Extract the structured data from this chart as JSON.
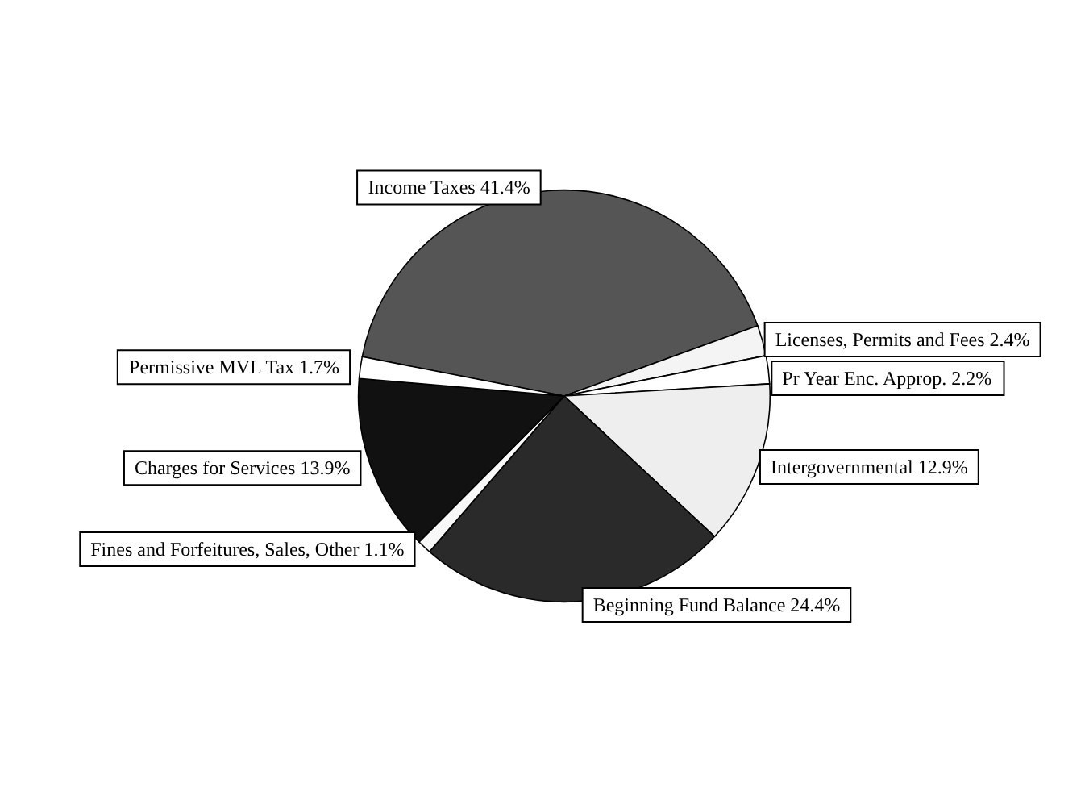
{
  "chart_data": {
    "type": "pie",
    "categories": [
      "Income Taxes",
      "Licenses, Permits and Fees",
      "Pr Year Enc. Approp.",
      "Intergovernmental",
      "Beginning Fund Balance",
      "Fines and Forfeitures, Sales, Other",
      "Charges for Services",
      "Permissive MVL Tax"
    ],
    "values": [
      41.4,
      2.4,
      2.2,
      12.9,
      24.4,
      1.1,
      13.9,
      1.7
    ],
    "colors": [
      "#555555",
      "#f4f4f4",
      "#ffffff",
      "#eeeeee",
      "#2a2a2a",
      "#f8f8f8",
      "#111111",
      "#ffffff"
    ],
    "value_labels": [
      "41.4%",
      "2.4%",
      "2.2%",
      "12.9%",
      "24.4%",
      "1.1%",
      "13.9%",
      "1.7%"
    ],
    "legend": false
  }
}
